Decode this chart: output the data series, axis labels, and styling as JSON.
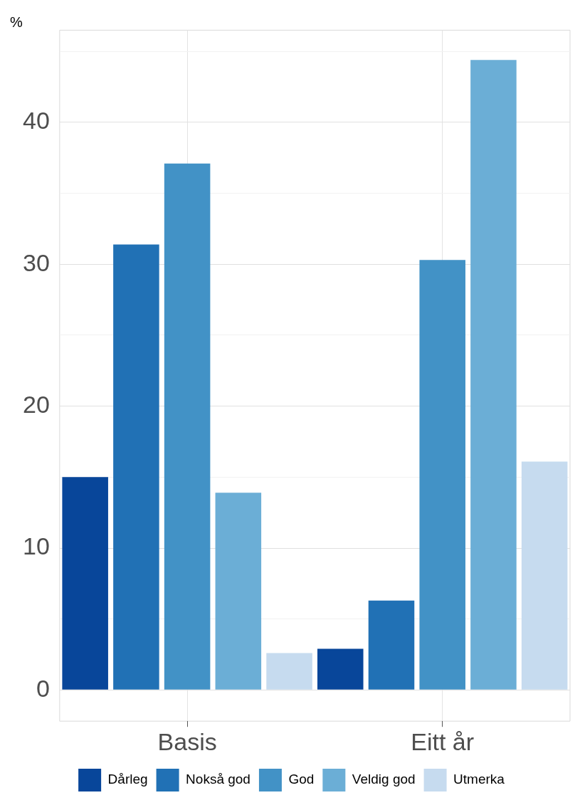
{
  "chart_data": {
    "type": "bar",
    "ylabel": "%",
    "categories": [
      "Basis",
      "Eitt år"
    ],
    "series": [
      {
        "name": "Dårleg",
        "color": "#08469a",
        "values": [
          15.0,
          2.9
        ]
      },
      {
        "name": "Nokså god",
        "color": "#2171b5",
        "values": [
          31.4,
          6.3
        ]
      },
      {
        "name": "God",
        "color": "#4292c6",
        "values": [
          37.1,
          30.3
        ]
      },
      {
        "name": "Veldig god",
        "color": "#6baed6",
        "values": [
          13.9,
          44.4
        ]
      },
      {
        "name": "Utmerka",
        "color": "#c6dbef",
        "values": [
          2.6,
          16.1
        ]
      }
    ],
    "ylim": [
      -2.2,
      46.5
    ],
    "yticks": [
      0,
      {
        "value": 5,
        "label": null
      },
      10,
      {
        "value": 15,
        "label": null
      },
      20,
      {
        "value": 25,
        "label": null
      },
      30,
      {
        "value": 35,
        "label": null
      },
      40,
      {
        "value": 45,
        "label": null
      }
    ],
    "grid": true,
    "legend": "bottom"
  }
}
